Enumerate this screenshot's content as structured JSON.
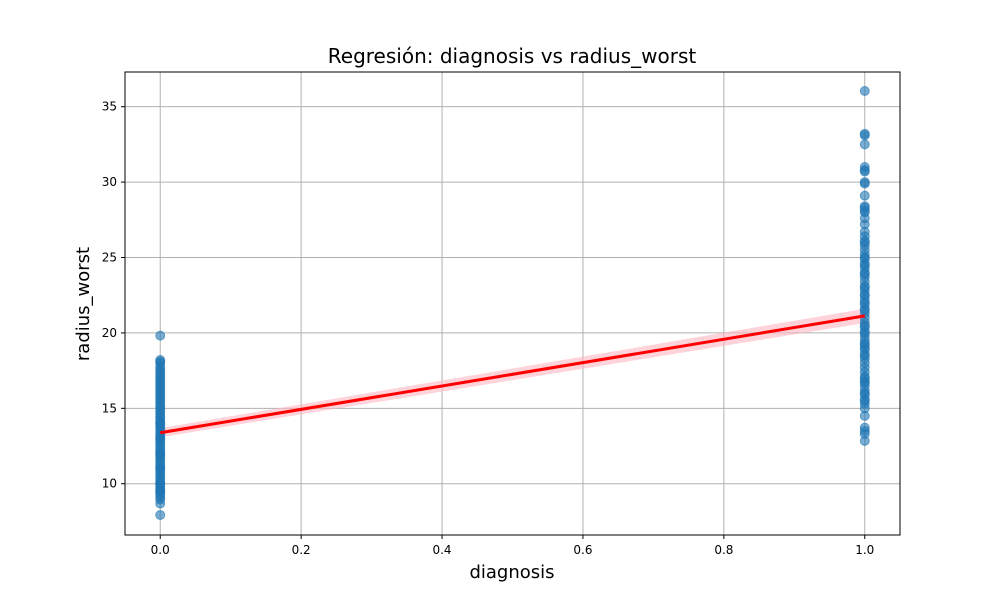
{
  "chart_data": {
    "type": "scatter",
    "title": "Regresión: diagnosis vs radius_worst",
    "xlabel": "diagnosis",
    "ylabel": "radius_worst",
    "xlim": [
      -0.05,
      1.05
    ],
    "ylim": [
      6.6,
      37.3
    ],
    "xticks": [
      0.0,
      0.2,
      0.4,
      0.6,
      0.8,
      1.0
    ],
    "xtick_labels": [
      "0.0",
      "0.2",
      "0.4",
      "0.6",
      "0.8",
      "1.0"
    ],
    "yticks": [
      10,
      15,
      20,
      25,
      30,
      35
    ],
    "ytick_labels": [
      "10",
      "15",
      "20",
      "25",
      "30",
      "35"
    ],
    "grid": true,
    "legend": "none",
    "colors": {
      "points": "#1f77b4",
      "line": "#ff0000",
      "band": "#ffb6c1",
      "grid": "#b0b0b0"
    },
    "series": [
      {
        "x": [
          0,
          0,
          0,
          0,
          0,
          0,
          0,
          0,
          0,
          0,
          0,
          0,
          0,
          0,
          0,
          0,
          0,
          0,
          0,
          0,
          0,
          0,
          0,
          0,
          0,
          0,
          0,
          0,
          0,
          0,
          0,
          0,
          0,
          0,
          0,
          0,
          0,
          0,
          0,
          0,
          0,
          0,
          0,
          0,
          0,
          0,
          0,
          0,
          0,
          0,
          0,
          0,
          0,
          0,
          0,
          0,
          0,
          0,
          0,
          0,
          0,
          0,
          0,
          0,
          0,
          0,
          0,
          0,
          0,
          0,
          0,
          0
        ],
        "y": [
          7.93,
          8.68,
          8.95,
          9.08,
          9.26,
          9.39,
          9.56,
          9.7,
          9.84,
          9.98,
          10.1,
          10.25,
          10.4,
          10.55,
          10.7,
          10.85,
          11.0,
          11.15,
          11.3,
          11.45,
          11.6,
          11.75,
          11.9,
          12.05,
          12.2,
          12.35,
          12.5,
          12.65,
          12.8,
          12.95,
          13.1,
          13.25,
          13.4,
          13.55,
          13.7,
          13.85,
          14.0,
          14.15,
          14.3,
          14.45,
          14.6,
          14.75,
          14.9,
          15.05,
          15.2,
          15.35,
          15.5,
          15.65,
          15.8,
          15.95,
          16.1,
          16.25,
          16.4,
          16.55,
          16.7,
          16.85,
          17.0,
          17.15,
          17.3,
          17.45,
          17.6,
          17.75,
          18.0,
          18.1,
          18.2,
          19.82,
          12.0,
          13.0,
          14.0,
          11.0,
          10.0,
          9.5
        ]
      },
      {
        "x": [
          1,
          1,
          1,
          1,
          1,
          1,
          1,
          1,
          1,
          1,
          1,
          1,
          1,
          1,
          1,
          1,
          1,
          1,
          1,
          1,
          1,
          1,
          1,
          1,
          1,
          1,
          1,
          1,
          1,
          1,
          1,
          1,
          1,
          1,
          1,
          1,
          1,
          1,
          1,
          1,
          1,
          1,
          1,
          1,
          1,
          1,
          1,
          1,
          1,
          1,
          1,
          1,
          1,
          1,
          1,
          1,
          1,
          1,
          1,
          1,
          1,
          1,
          1,
          1,
          1,
          1,
          1,
          1,
          1,
          1,
          1,
          1,
          1,
          1,
          1,
          1,
          1,
          1
        ],
        "y": [
          12.84,
          13.3,
          13.5,
          13.72,
          14.5,
          15.0,
          15.3,
          15.6,
          15.9,
          16.2,
          16.5,
          16.8,
          17.1,
          17.4,
          17.7,
          18.0,
          18.3,
          18.6,
          18.9,
          19.2,
          19.5,
          19.8,
          20.1,
          20.4,
          20.7,
          21.0,
          21.3,
          21.6,
          21.9,
          22.2,
          22.5,
          22.8,
          23.1,
          23.4,
          23.7,
          24.0,
          24.3,
          24.6,
          24.9,
          25.2,
          25.5,
          25.8,
          26.1,
          26.4,
          26.7,
          27.2,
          27.6,
          28.0,
          28.1,
          28.3,
          28.4,
          29.1,
          29.9,
          30.0,
          30.7,
          30.8,
          31.0,
          32.5,
          33.1,
          33.2,
          36.04,
          17.0,
          18.5,
          20.0,
          21.5,
          22.0,
          23.0,
          24.5,
          25.0,
          15.5,
          16.0,
          19.0,
          20.5,
          22.5,
          26.0,
          16.7,
          19.3,
          23.9
        ]
      }
    ],
    "regression": {
      "x": [
        0,
        1
      ],
      "y": [
        13.38,
        21.13
      ],
      "ci_lower": [
        13.08,
        20.66
      ],
      "ci_upper": [
        13.68,
        21.6
      ]
    }
  }
}
